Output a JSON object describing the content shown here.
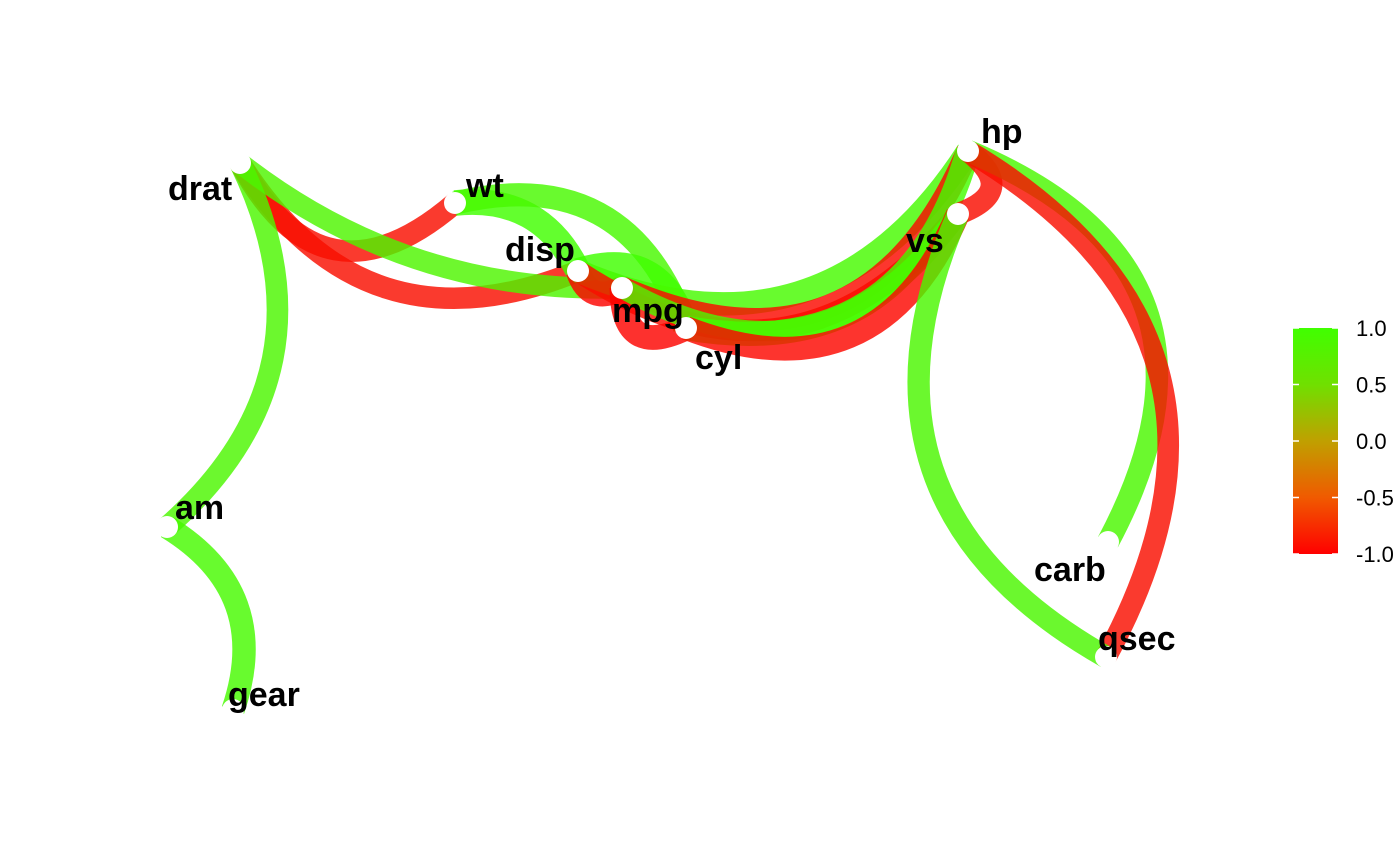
{
  "chart_data": {
    "type": "network",
    "title": "",
    "nodes": [
      "drat",
      "wt",
      "disp",
      "mpg",
      "cyl",
      "hp",
      "vs",
      "carb",
      "qsec",
      "am",
      "gear"
    ],
    "edges": [
      {
        "from": "drat",
        "to": "wt",
        "r": -0.71
      },
      {
        "from": "drat",
        "to": "disp",
        "r": -0.71
      },
      {
        "from": "drat",
        "to": "mpg",
        "r": 0.68
      },
      {
        "from": "drat",
        "to": "am",
        "r": 0.71
      },
      {
        "from": "am",
        "to": "gear",
        "r": 0.79
      },
      {
        "from": "wt",
        "to": "disp",
        "r": 0.89
      },
      {
        "from": "wt",
        "to": "cyl",
        "r": 0.78
      },
      {
        "from": "disp",
        "to": "mpg",
        "r": -0.85
      },
      {
        "from": "disp",
        "to": "cyl",
        "r": 0.9
      },
      {
        "from": "disp",
        "to": "hp",
        "r": 0.79
      },
      {
        "from": "disp",
        "to": "vs",
        "r": -0.71
      },
      {
        "from": "mpg",
        "to": "cyl",
        "r": -0.85
      },
      {
        "from": "mpg",
        "to": "hp",
        "r": -0.78
      },
      {
        "from": "mpg",
        "to": "vs",
        "r": 0.66
      },
      {
        "from": "cyl",
        "to": "hp",
        "r": 0.83
      },
      {
        "from": "cyl",
        "to": "vs",
        "r": -0.81
      },
      {
        "from": "hp",
        "to": "vs",
        "r": -0.72
      },
      {
        "from": "hp",
        "to": "carb",
        "r": 0.75
      },
      {
        "from": "hp",
        "to": "qsec",
        "r": -0.71
      },
      {
        "from": "vs",
        "to": "qsec",
        "r": 0.74
      }
    ],
    "legend": {
      "position": "right",
      "range": [
        -1.0,
        1.0
      ],
      "ticks": [
        "1.0",
        "0.5",
        "0.0",
        "-0.5",
        "-1.0"
      ],
      "colors": {
        "low": "#FF0000",
        "mid": "#C0A000",
        "high": "#40FF00"
      }
    }
  }
}
